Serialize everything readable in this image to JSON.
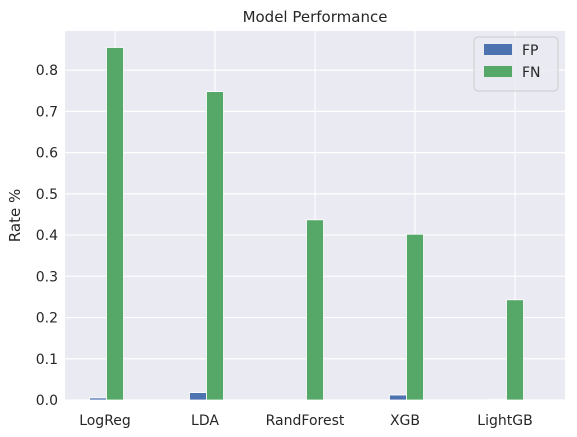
{
  "chart_data": {
    "type": "bar",
    "title": "Model Performance",
    "xlabel": "",
    "ylabel": "Rate %",
    "categories": [
      "LogReg",
      "LDA",
      "RandForest",
      "XGB",
      "LightGB"
    ],
    "series": [
      {
        "name": "FP",
        "values": [
          0.005,
          0.018,
          0.0,
          0.012,
          0.002
        ],
        "color": "#4c72b0"
      },
      {
        "name": "FN",
        "values": [
          0.855,
          0.748,
          0.437,
          0.402,
          0.243
        ],
        "color": "#55a868"
      }
    ],
    "ylim": [
      0,
      0.895
    ],
    "yticks": [
      0.0,
      0.1,
      0.2,
      0.3,
      0.4,
      0.5,
      0.6,
      0.7,
      0.8
    ],
    "ytick_labels": [
      "0.0",
      "0.1",
      "0.2",
      "0.3",
      "0.4",
      "0.5",
      "0.6",
      "0.7",
      "0.8"
    ],
    "grid": true,
    "legend_position": "top-right",
    "background_color": "#eaeaf2",
    "grid_color": "#ffffff"
  }
}
